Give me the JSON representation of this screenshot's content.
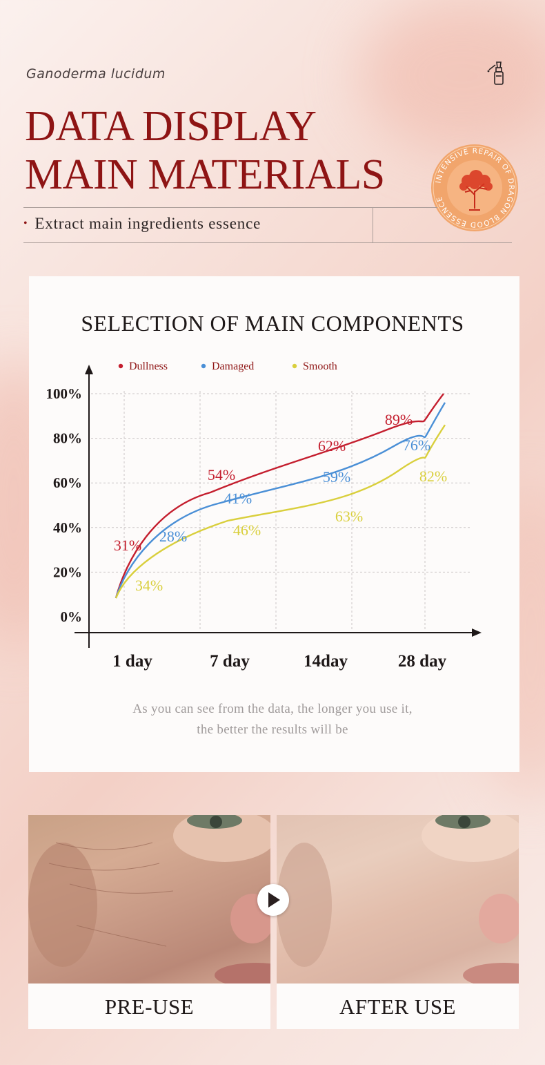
{
  "header": {
    "tagline": "Ganoderma lucidum",
    "title_line1": "DATA DISPLAY",
    "title_line2": "MAIN MATERIALS",
    "subline": "Extract main ingredients essence",
    "seal_text": "INTENSIVE REPAIR OF DRAGON BLOOD ESSENCE"
  },
  "colors": {
    "title": "#8e1414",
    "dullness": "#c41e2e",
    "damaged": "#4a8fd6",
    "smooth": "#d9cf3c"
  },
  "chart_data": {
    "type": "line",
    "title": "SELECTION OF MAIN COMPONENTS",
    "categories": [
      "1 day",
      "7 day",
      "14day",
      "28 day"
    ],
    "y_ticks": [
      "100%",
      "80%",
      "60%",
      "40%",
      "20%",
      "0%"
    ],
    "ylim": [
      0,
      100
    ],
    "grid": true,
    "legend_position": "top",
    "series": [
      {
        "name": "Dullness",
        "color": "#c41e2e",
        "values": [
          31,
          54,
          62,
          89
        ],
        "labels": [
          "31%",
          "54%",
          "62%",
          "89%"
        ]
      },
      {
        "name": "Damaged",
        "color": "#4a8fd6",
        "values": [
          28,
          41,
          59,
          76
        ],
        "labels": [
          "28%",
          "41%",
          "59%",
          "76%"
        ]
      },
      {
        "name": "Smooth",
        "color": "#d9cf3c",
        "values": [
          34,
          46,
          63,
          82
        ],
        "labels": [
          "34%",
          "46%",
          "63%",
          "82%"
        ]
      }
    ]
  },
  "caption": {
    "line1": "As you can see from the data, the longer you use it,",
    "line2": "the better the results will be"
  },
  "comparison": {
    "before_label": "PRE-USE",
    "after_label": "AFTER USE"
  }
}
